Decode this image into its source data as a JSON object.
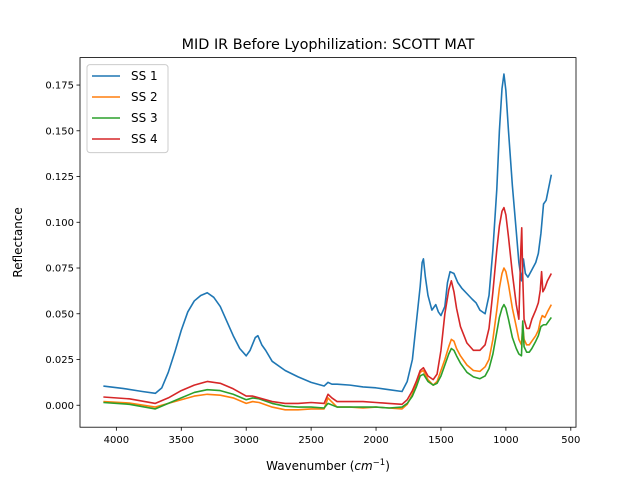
{
  "chart_data": {
    "type": "line",
    "title": "MID IR Before Lyophilization: SCOTT MAT",
    "xlabel_main": "Wavenumber (",
    "xlabel_unit": "cm",
    "xlabel_sup": "−1",
    "xlabel_close": ")",
    "ylabel": "Reflectance",
    "xlim": [
      4280,
      460
    ],
    "ylim": [
      -0.012,
      0.19
    ],
    "x_ticks": [
      {
        "value": 4000,
        "label": "4000"
      },
      {
        "value": 3500,
        "label": "3500"
      },
      {
        "value": 3000,
        "label": "3000"
      },
      {
        "value": 2500,
        "label": "2500"
      },
      {
        "value": 2000,
        "label": "2000"
      },
      {
        "value": 1500,
        "label": "1500"
      },
      {
        "value": 1000,
        "label": "1000"
      },
      {
        "value": 500,
        "label": "500"
      }
    ],
    "y_ticks": [
      {
        "value": 0.0,
        "label": "0.000"
      },
      {
        "value": 0.025,
        "label": "0.025"
      },
      {
        "value": 0.05,
        "label": "0.050"
      },
      {
        "value": 0.075,
        "label": "0.075"
      },
      {
        "value": 0.1,
        "label": "0.100"
      },
      {
        "value": 0.125,
        "label": "0.125"
      },
      {
        "value": 0.15,
        "label": "0.150"
      },
      {
        "value": 0.175,
        "label": "0.175"
      }
    ],
    "grid": false,
    "legend_position": "top-left",
    "series": [
      {
        "name": "SS 1",
        "color": "#1f77b4",
        "points": [
          [
            4100,
            0.0105
          ],
          [
            3950,
            0.0092
          ],
          [
            3800,
            0.0075
          ],
          [
            3700,
            0.0065
          ],
          [
            3650,
            0.0095
          ],
          [
            3600,
            0.018
          ],
          [
            3550,
            0.029
          ],
          [
            3500,
            0.041
          ],
          [
            3450,
            0.051
          ],
          [
            3400,
            0.057
          ],
          [
            3350,
            0.06
          ],
          [
            3300,
            0.0615
          ],
          [
            3250,
            0.059
          ],
          [
            3200,
            0.054
          ],
          [
            3150,
            0.046
          ],
          [
            3100,
            0.038
          ],
          [
            3050,
            0.031
          ],
          [
            3000,
            0.027
          ],
          [
            2970,
            0.03
          ],
          [
            2930,
            0.037
          ],
          [
            2910,
            0.038
          ],
          [
            2880,
            0.033
          ],
          [
            2850,
            0.03
          ],
          [
            2800,
            0.024
          ],
          [
            2700,
            0.019
          ],
          [
            2600,
            0.0155
          ],
          [
            2500,
            0.0125
          ],
          [
            2400,
            0.0105
          ],
          [
            2370,
            0.0125
          ],
          [
            2340,
            0.0115
          ],
          [
            2300,
            0.0115
          ],
          [
            2200,
            0.011
          ],
          [
            2100,
            0.01
          ],
          [
            2000,
            0.0095
          ],
          [
            1900,
            0.0085
          ],
          [
            1800,
            0.0075
          ],
          [
            1760,
            0.013
          ],
          [
            1720,
            0.025
          ],
          [
            1690,
            0.045
          ],
          [
            1660,
            0.065
          ],
          [
            1645,
            0.078
          ],
          [
            1635,
            0.08
          ],
          [
            1620,
            0.07
          ],
          [
            1600,
            0.06
          ],
          [
            1570,
            0.052
          ],
          [
            1540,
            0.055
          ],
          [
            1520,
            0.051
          ],
          [
            1500,
            0.049
          ],
          [
            1470,
            0.054
          ],
          [
            1450,
            0.067
          ],
          [
            1430,
            0.073
          ],
          [
            1400,
            0.072
          ],
          [
            1370,
            0.067
          ],
          [
            1340,
            0.064
          ],
          [
            1300,
            0.061
          ],
          [
            1260,
            0.058
          ],
          [
            1230,
            0.056
          ],
          [
            1200,
            0.052
          ],
          [
            1160,
            0.05
          ],
          [
            1130,
            0.06
          ],
          [
            1100,
            0.085
          ],
          [
            1070,
            0.118
          ],
          [
            1050,
            0.15
          ],
          [
            1030,
            0.173
          ],
          [
            1015,
            0.181
          ],
          [
            1000,
            0.172
          ],
          [
            980,
            0.15
          ],
          [
            950,
            0.12
          ],
          [
            920,
            0.095
          ],
          [
            900,
            0.078
          ],
          [
            880,
            0.068
          ],
          [
            865,
            0.08
          ],
          [
            850,
            0.072
          ],
          [
            830,
            0.07
          ],
          [
            800,
            0.074
          ],
          [
            770,
            0.078
          ],
          [
            750,
            0.083
          ],
          [
            730,
            0.094
          ],
          [
            710,
            0.11
          ],
          [
            690,
            0.112
          ],
          [
            670,
            0.119
          ],
          [
            650,
            0.126
          ]
        ]
      },
      {
        "name": "SS 2",
        "color": "#ff7f0e",
        "points": [
          [
            4100,
            0.002
          ],
          [
            3900,
            0.0012
          ],
          [
            3700,
            -0.001
          ],
          [
            3600,
            0.001
          ],
          [
            3500,
            0.003
          ],
          [
            3400,
            0.005
          ],
          [
            3300,
            0.006
          ],
          [
            3200,
            0.0055
          ],
          [
            3100,
            0.004
          ],
          [
            3000,
            0.001
          ],
          [
            2950,
            0.002
          ],
          [
            2900,
            0.0015
          ],
          [
            2800,
            -0.001
          ],
          [
            2700,
            -0.0025
          ],
          [
            2600,
            -0.0025
          ],
          [
            2500,
            -0.002
          ],
          [
            2400,
            -0.002
          ],
          [
            2370,
            0.004
          ],
          [
            2350,
            0.0025
          ],
          [
            2300,
            -0.001
          ],
          [
            2200,
            -0.001
          ],
          [
            2100,
            -0.0015
          ],
          [
            2000,
            -0.001
          ],
          [
            1900,
            -0.0015
          ],
          [
            1800,
            -0.002
          ],
          [
            1760,
            0.0005
          ],
          [
            1720,
            0.006
          ],
          [
            1690,
            0.012
          ],
          [
            1660,
            0.018
          ],
          [
            1635,
            0.019
          ],
          [
            1600,
            0.014
          ],
          [
            1560,
            0.011
          ],
          [
            1530,
            0.013
          ],
          [
            1500,
            0.019
          ],
          [
            1470,
            0.025
          ],
          [
            1440,
            0.032
          ],
          [
            1420,
            0.036
          ],
          [
            1400,
            0.035
          ],
          [
            1380,
            0.031
          ],
          [
            1350,
            0.027
          ],
          [
            1300,
            0.022
          ],
          [
            1250,
            0.019
          ],
          [
            1200,
            0.0185
          ],
          [
            1160,
            0.021
          ],
          [
            1130,
            0.025
          ],
          [
            1100,
            0.036
          ],
          [
            1070,
            0.052
          ],
          [
            1050,
            0.064
          ],
          [
            1030,
            0.072
          ],
          [
            1015,
            0.075
          ],
          [
            1000,
            0.073
          ],
          [
            980,
            0.066
          ],
          [
            950,
            0.053
          ],
          [
            920,
            0.043
          ],
          [
            900,
            0.036
          ],
          [
            880,
            0.033
          ],
          [
            870,
            0.044
          ],
          [
            860,
            0.036
          ],
          [
            840,
            0.033
          ],
          [
            820,
            0.033
          ],
          [
            800,
            0.035
          ],
          [
            770,
            0.038
          ],
          [
            750,
            0.041
          ],
          [
            735,
            0.046
          ],
          [
            720,
            0.049
          ],
          [
            700,
            0.048
          ],
          [
            680,
            0.051
          ],
          [
            650,
            0.055
          ]
        ]
      },
      {
        "name": "SS 3",
        "color": "#2ca02c",
        "points": [
          [
            4100,
            0.0015
          ],
          [
            3900,
            0.0005
          ],
          [
            3700,
            -0.002
          ],
          [
            3600,
            0.001
          ],
          [
            3500,
            0.004
          ],
          [
            3400,
            0.007
          ],
          [
            3300,
            0.0085
          ],
          [
            3200,
            0.008
          ],
          [
            3100,
            0.006
          ],
          [
            3000,
            0.003
          ],
          [
            2950,
            0.004
          ],
          [
            2900,
            0.0035
          ],
          [
            2800,
            0.001
          ],
          [
            2700,
            -0.0005
          ],
          [
            2600,
            -0.001
          ],
          [
            2500,
            -0.001
          ],
          [
            2400,
            -0.0015
          ],
          [
            2370,
            0.001
          ],
          [
            2300,
            -0.001
          ],
          [
            2200,
            -0.001
          ],
          [
            2100,
            -0.001
          ],
          [
            2000,
            -0.001
          ],
          [
            1900,
            -0.0015
          ],
          [
            1800,
            -0.001
          ],
          [
            1760,
            0.001
          ],
          [
            1720,
            0.005
          ],
          [
            1690,
            0.01
          ],
          [
            1660,
            0.016
          ],
          [
            1635,
            0.017
          ],
          [
            1600,
            0.013
          ],
          [
            1560,
            0.011
          ],
          [
            1530,
            0.012
          ],
          [
            1500,
            0.016
          ],
          [
            1470,
            0.022
          ],
          [
            1440,
            0.028
          ],
          [
            1420,
            0.031
          ],
          [
            1400,
            0.03
          ],
          [
            1380,
            0.027
          ],
          [
            1350,
            0.023
          ],
          [
            1300,
            0.018
          ],
          [
            1250,
            0.0155
          ],
          [
            1200,
            0.0145
          ],
          [
            1160,
            0.016
          ],
          [
            1130,
            0.02
          ],
          [
            1100,
            0.028
          ],
          [
            1070,
            0.04
          ],
          [
            1050,
            0.048
          ],
          [
            1030,
            0.053
          ],
          [
            1015,
            0.055
          ],
          [
            1000,
            0.053
          ],
          [
            980,
            0.047
          ],
          [
            950,
            0.037
          ],
          [
            920,
            0.031
          ],
          [
            900,
            0.028
          ],
          [
            880,
            0.027
          ],
          [
            870,
            0.046
          ],
          [
            860,
            0.032
          ],
          [
            840,
            0.029
          ],
          [
            820,
            0.029
          ],
          [
            800,
            0.031
          ],
          [
            770,
            0.035
          ],
          [
            750,
            0.038
          ],
          [
            730,
            0.043
          ],
          [
            710,
            0.044
          ],
          [
            690,
            0.044
          ],
          [
            670,
            0.046
          ],
          [
            650,
            0.048
          ]
        ]
      },
      {
        "name": "SS 4",
        "color": "#d62728",
        "points": [
          [
            4100,
            0.0045
          ],
          [
            3900,
            0.0035
          ],
          [
            3700,
            0.001
          ],
          [
            3600,
            0.004
          ],
          [
            3500,
            0.008
          ],
          [
            3400,
            0.011
          ],
          [
            3300,
            0.013
          ],
          [
            3200,
            0.012
          ],
          [
            3100,
            0.009
          ],
          [
            3000,
            0.005
          ],
          [
            2950,
            0.005
          ],
          [
            2900,
            0.004
          ],
          [
            2800,
            0.002
          ],
          [
            2700,
            0.001
          ],
          [
            2600,
            0.001
          ],
          [
            2500,
            0.0015
          ],
          [
            2400,
            0.001
          ],
          [
            2370,
            0.006
          ],
          [
            2340,
            0.004
          ],
          [
            2300,
            0.002
          ],
          [
            2200,
            0.002
          ],
          [
            2100,
            0.002
          ],
          [
            2000,
            0.0015
          ],
          [
            1900,
            0.001
          ],
          [
            1800,
            0.0005
          ],
          [
            1760,
            0.003
          ],
          [
            1720,
            0.008
          ],
          [
            1690,
            0.013
          ],
          [
            1660,
            0.019
          ],
          [
            1635,
            0.0205
          ],
          [
            1600,
            0.016
          ],
          [
            1560,
            0.014
          ],
          [
            1530,
            0.017
          ],
          [
            1500,
            0.03
          ],
          [
            1470,
            0.05
          ],
          [
            1440,
            0.063
          ],
          [
            1420,
            0.068
          ],
          [
            1400,
            0.062
          ],
          [
            1380,
            0.053
          ],
          [
            1350,
            0.043
          ],
          [
            1300,
            0.034
          ],
          [
            1250,
            0.03
          ],
          [
            1200,
            0.03
          ],
          [
            1160,
            0.033
          ],
          [
            1130,
            0.042
          ],
          [
            1100,
            0.062
          ],
          [
            1070,
            0.085
          ],
          [
            1050,
            0.098
          ],
          [
            1030,
            0.106
          ],
          [
            1015,
            0.108
          ],
          [
            1000,
            0.104
          ],
          [
            980,
            0.092
          ],
          [
            950,
            0.072
          ],
          [
            920,
            0.055
          ],
          [
            900,
            0.047
          ],
          [
            885,
            0.085
          ],
          [
            878,
            0.097
          ],
          [
            870,
            0.07
          ],
          [
            860,
            0.047
          ],
          [
            840,
            0.042
          ],
          [
            820,
            0.042
          ],
          [
            800,
            0.047
          ],
          [
            770,
            0.052
          ],
          [
            750,
            0.056
          ],
          [
            735,
            0.063
          ],
          [
            725,
            0.073
          ],
          [
            715,
            0.062
          ],
          [
            700,
            0.064
          ],
          [
            680,
            0.068
          ],
          [
            650,
            0.072
          ]
        ]
      }
    ]
  }
}
